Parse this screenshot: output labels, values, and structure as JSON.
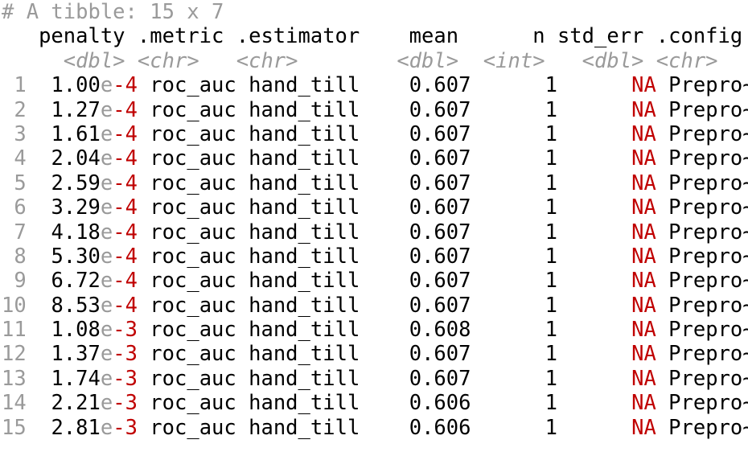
{
  "header": "# A tibble: 15 x 7",
  "columns": [
    "penalty",
    ".metric",
    ".estimator",
    "mean",
    "n",
    "std_err",
    ".config"
  ],
  "types": [
    "<dbl>",
    "<chr>",
    "<chr>",
    "<dbl>",
    "<int>",
    "<dbl>",
    "<chr>"
  ],
  "rows": [
    {
      "id": "1",
      "mant": "1.00",
      "e": "e",
      "exp": "-4",
      "metric": "roc_auc",
      "estimator": "hand_till",
      "mean": "0.607",
      "n": "1",
      "std_err": "NA",
      "config": "Prepro~"
    },
    {
      "id": "2",
      "mant": "1.27",
      "e": "e",
      "exp": "-4",
      "metric": "roc_auc",
      "estimator": "hand_till",
      "mean": "0.607",
      "n": "1",
      "std_err": "NA",
      "config": "Prepro~"
    },
    {
      "id": "3",
      "mant": "1.61",
      "e": "e",
      "exp": "-4",
      "metric": "roc_auc",
      "estimator": "hand_till",
      "mean": "0.607",
      "n": "1",
      "std_err": "NA",
      "config": "Prepro~"
    },
    {
      "id": "4",
      "mant": "2.04",
      "e": "e",
      "exp": "-4",
      "metric": "roc_auc",
      "estimator": "hand_till",
      "mean": "0.607",
      "n": "1",
      "std_err": "NA",
      "config": "Prepro~"
    },
    {
      "id": "5",
      "mant": "2.59",
      "e": "e",
      "exp": "-4",
      "metric": "roc_auc",
      "estimator": "hand_till",
      "mean": "0.607",
      "n": "1",
      "std_err": "NA",
      "config": "Prepro~"
    },
    {
      "id": "6",
      "mant": "3.29",
      "e": "e",
      "exp": "-4",
      "metric": "roc_auc",
      "estimator": "hand_till",
      "mean": "0.607",
      "n": "1",
      "std_err": "NA",
      "config": "Prepro~"
    },
    {
      "id": "7",
      "mant": "4.18",
      "e": "e",
      "exp": "-4",
      "metric": "roc_auc",
      "estimator": "hand_till",
      "mean": "0.607",
      "n": "1",
      "std_err": "NA",
      "config": "Prepro~"
    },
    {
      "id": "8",
      "mant": "5.30",
      "e": "e",
      "exp": "-4",
      "metric": "roc_auc",
      "estimator": "hand_till",
      "mean": "0.607",
      "n": "1",
      "std_err": "NA",
      "config": "Prepro~"
    },
    {
      "id": "9",
      "mant": "6.72",
      "e": "e",
      "exp": "-4",
      "metric": "roc_auc",
      "estimator": "hand_till",
      "mean": "0.607",
      "n": "1",
      "std_err": "NA",
      "config": "Prepro~"
    },
    {
      "id": "10",
      "mant": "8.53",
      "e": "e",
      "exp": "-4",
      "metric": "roc_auc",
      "estimator": "hand_till",
      "mean": "0.607",
      "n": "1",
      "std_err": "NA",
      "config": "Prepro~"
    },
    {
      "id": "11",
      "mant": "1.08",
      "e": "e",
      "exp": "-3",
      "metric": "roc_auc",
      "estimator": "hand_till",
      "mean": "0.608",
      "n": "1",
      "std_err": "NA",
      "config": "Prepro~"
    },
    {
      "id": "12",
      "mant": "1.37",
      "e": "e",
      "exp": "-3",
      "metric": "roc_auc",
      "estimator": "hand_till",
      "mean": "0.607",
      "n": "1",
      "std_err": "NA",
      "config": "Prepro~"
    },
    {
      "id": "13",
      "mant": "1.74",
      "e": "e",
      "exp": "-3",
      "metric": "roc_auc",
      "estimator": "hand_till",
      "mean": "0.607",
      "n": "1",
      "std_err": "NA",
      "config": "Prepro~"
    },
    {
      "id": "14",
      "mant": "2.21",
      "e": "e",
      "exp": "-3",
      "metric": "roc_auc",
      "estimator": "hand_till",
      "mean": "0.606",
      "n": "1",
      "std_err": "NA",
      "config": "Prepro~"
    },
    {
      "id": "15",
      "mant": "2.81",
      "e": "e",
      "exp": "-3",
      "metric": "roc_auc",
      "estimator": "hand_till",
      "mean": "0.606",
      "n": "1",
      "std_err": "NA",
      "config": "Prepro~"
    }
  ]
}
